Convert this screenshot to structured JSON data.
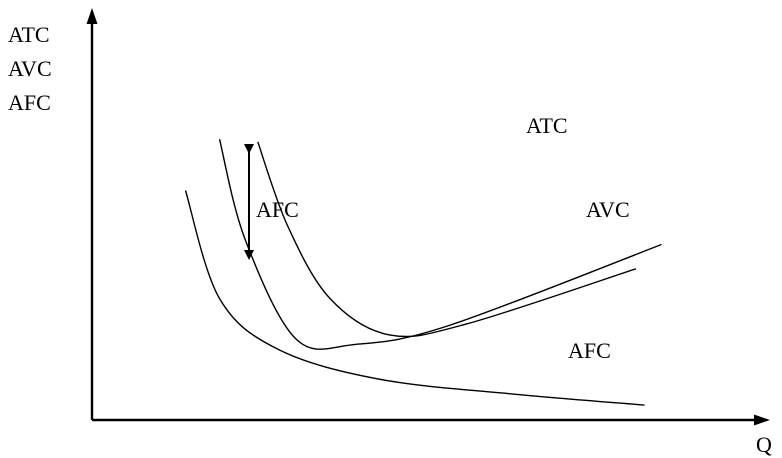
{
  "chart_data": {
    "type": "line",
    "title": "",
    "ylabel_lines": [
      "ATC",
      "AVC",
      "AFC"
    ],
    "xlabel": "Q",
    "grid": false,
    "ticks": false,
    "series": [
      {
        "name": "ATC",
        "points": [
          [
            1.95,
            10.3
          ],
          [
            2.3,
            7.2
          ],
          [
            2.8,
            4.5
          ],
          [
            3.5,
            3.15
          ],
          [
            4.4,
            3.55
          ],
          [
            6.4,
            5.6
          ]
        ],
        "color": "#000000"
      },
      {
        "name": "AVC",
        "points": [
          [
            1.5,
            10.4
          ],
          [
            1.8,
            6.7
          ],
          [
            2.4,
            3.0
          ],
          [
            3.1,
            2.8
          ],
          [
            4.2,
            3.5
          ],
          [
            6.7,
            6.5
          ]
        ],
        "color": "#000000"
      },
      {
        "name": "AFC",
        "points": [
          [
            1.1,
            8.5
          ],
          [
            1.5,
            4.5
          ],
          [
            2.2,
            2.6
          ],
          [
            3.4,
            1.5
          ],
          [
            5.0,
            0.95
          ],
          [
            6.5,
            0.55
          ]
        ],
        "color": "#000000"
      }
    ],
    "annotations": [
      {
        "text": "AFC",
        "kind": "vertical-double-arrow",
        "between": [
          "ATC",
          "AVC"
        ]
      }
    ],
    "colors": {
      "line": "#000000",
      "background": "#ffffff"
    }
  }
}
